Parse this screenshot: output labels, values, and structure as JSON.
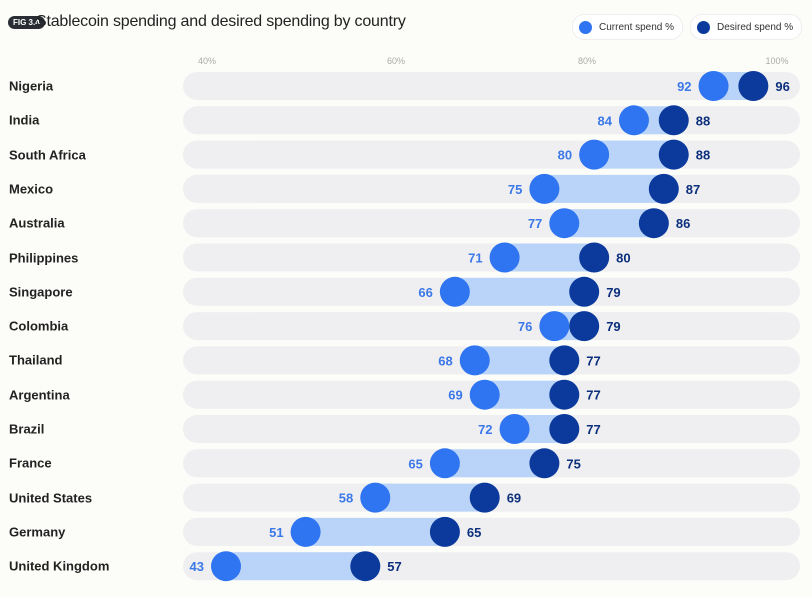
{
  "figure_tag": "FIG 3.4",
  "chart_data": {
    "type": "dumbbell",
    "title": "Stablecoin spending and desired spending by country",
    "x_ticks": [
      "40%",
      "60%",
      "80%",
      "100%"
    ],
    "x_tick_values": [
      40,
      60,
      80,
      100
    ],
    "legend_position": "top-right",
    "series": [
      {
        "name": "Current spend %",
        "color": "#2f74f0"
      },
      {
        "name": "Desired spend %",
        "color": "#0b3a9c"
      }
    ],
    "categories": [
      "Nigeria",
      "India",
      "South Africa",
      "Mexico",
      "Australia",
      "Philippines",
      "Singapore",
      "Colombia",
      "Thailand",
      "Argentina",
      "Brazil",
      "France",
      "United States",
      "Germany",
      "United Kingdom"
    ],
    "current": [
      92,
      84,
      80,
      75,
      77,
      71,
      66,
      76,
      68,
      69,
      72,
      65,
      58,
      51,
      43
    ],
    "desired": [
      96,
      88,
      88,
      87,
      86,
      80,
      79,
      79,
      77,
      77,
      77,
      75,
      69,
      65,
      57
    ]
  }
}
